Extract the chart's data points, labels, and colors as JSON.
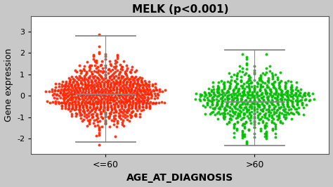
{
  "title": "MELK (p<0.001)",
  "xlabel": "AGE_AT_DIAGNOSIS",
  "ylabel": "Gene expression",
  "groups": [
    "<=60",
    ">60"
  ],
  "group_colors": [
    "#FF2200",
    "#00BB00"
  ],
  "group1_median": 0.07,
  "group1_q1": -0.5,
  "group1_q3": 0.85,
  "group1_whisker_low": -2.15,
  "group1_whisker_high": 2.8,
  "group2_median": -0.28,
  "group2_q1": -0.75,
  "group2_q3": 0.7,
  "group2_whisker_low": -2.3,
  "group2_whisker_high": 2.12,
  "n_group1": 900,
  "n_group2": 700,
  "ylim": [
    -2.7,
    3.7
  ],
  "yticks": [
    -2,
    -1,
    0,
    1,
    2,
    3
  ],
  "background_outer": "#C8C8C8",
  "background_plot": "#FFFFFF",
  "dot_size": 8,
  "dot_alpha": 0.9,
  "seed": 42,
  "figsize": [
    4.74,
    2.66
  ],
  "dpi": 100
}
